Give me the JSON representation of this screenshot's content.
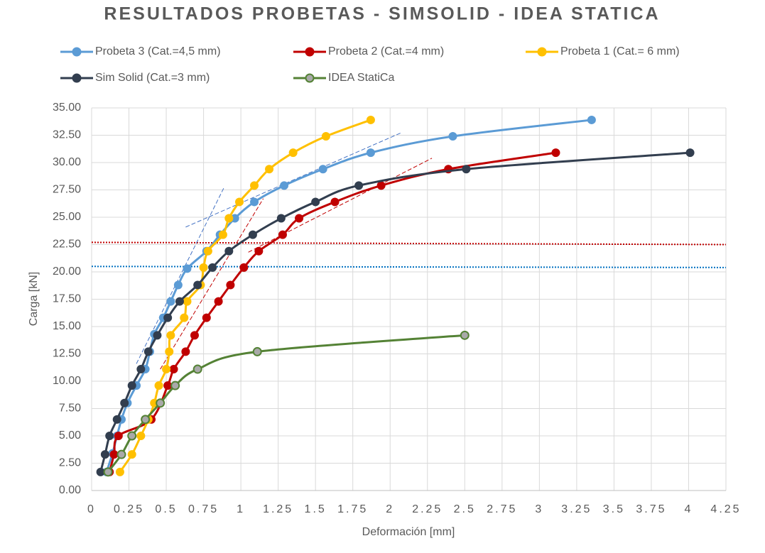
{
  "chart_data": {
    "type": "line",
    "title": "RESULTADOS  PROBETAS  - SIMSOLID  - IDEA STATICA",
    "xlabel": "Deformación [mm]",
    "ylabel": "Carga [kN]",
    "xlim": [
      0,
      4.25
    ],
    "ylim": [
      0,
      35
    ],
    "xticks": [
      0,
      0.25,
      0.5,
      0.75,
      1,
      1.25,
      1.5,
      1.75,
      2,
      2.25,
      2.5,
      2.75,
      3,
      3.25,
      3.5,
      3.75,
      4,
      4.25
    ],
    "yticks": [
      {
        "value": 0,
        "label": "0.00"
      },
      {
        "value": 2.5,
        "label": "2.50"
      },
      {
        "value": 5,
        "label": "5.00"
      },
      {
        "value": 7.5,
        "label": "7.50"
      },
      {
        "value": 10,
        "label": "10.00"
      },
      {
        "value": 12.5,
        "label": "12.50"
      },
      {
        "value": 15,
        "label": "15.00"
      },
      {
        "value": 17.5,
        "label": "17.50"
      },
      {
        "value": 20,
        "label": "20.00"
      },
      {
        "value": 22.5,
        "label": "22.50"
      },
      {
        "value": 25,
        "label": "25.00"
      },
      {
        "value": 27.5,
        "label": "27.50"
      },
      {
        "value": 30,
        "label": "30.00"
      },
      {
        "value": 32.5,
        "label": "32.50"
      },
      {
        "value": 35,
        "label": "35.00"
      }
    ],
    "grid": true,
    "series": [
      {
        "name": "Probeta 3 (Cat.=4,5 mm)",
        "color": "#5b9bd5",
        "x": [
          0.1,
          0.14,
          0.17,
          0.2,
          0.24,
          0.3,
          0.36,
          0.39,
          0.42,
          0.48,
          0.53,
          0.58,
          0.64,
          0.77,
          0.86,
          0.96,
          1.09,
          1.29,
          1.55,
          1.87,
          2.42,
          3.35
        ],
        "values": [
          1.7,
          3.4,
          5.0,
          6.5,
          8.0,
          9.6,
          11.1,
          12.7,
          14.3,
          15.8,
          17.3,
          18.8,
          20.3,
          21.9,
          23.4,
          24.9,
          26.4,
          27.9,
          29.4,
          30.9,
          32.4,
          33.9
        ]
      },
      {
        "name": "Probeta 2 (Cat.=4 mm)",
        "color": "#c00000",
        "x": [
          0.12,
          0.15,
          0.18,
          0.4,
          0.51,
          0.55,
          0.63,
          0.69,
          0.77,
          0.85,
          0.93,
          1.02,
          1.12,
          1.28,
          1.39,
          1.63,
          1.94,
          2.39,
          3.11
        ],
        "values": [
          1.7,
          3.3,
          5.0,
          6.5,
          9.6,
          11.1,
          12.7,
          14.2,
          15.8,
          17.3,
          18.8,
          20.4,
          21.9,
          23.4,
          24.9,
          26.4,
          27.9,
          29.4,
          30.9
        ]
      },
      {
        "name": "Probeta 1 (Cat.= 6 mm)",
        "color": "#ffc000",
        "x": [
          0.19,
          0.27,
          0.33,
          0.38,
          0.42,
          0.45,
          0.5,
          0.52,
          0.53,
          0.62,
          0.64,
          0.73,
          0.75,
          0.78,
          0.88,
          0.92,
          0.99,
          1.09,
          1.19,
          1.35,
          1.57,
          1.87
        ],
        "values": [
          1.7,
          3.3,
          5.0,
          6.5,
          8.0,
          9.6,
          11.1,
          12.7,
          14.2,
          15.8,
          17.3,
          18.8,
          20.4,
          21.9,
          23.4,
          24.9,
          26.4,
          27.9,
          29.4,
          30.9,
          32.4,
          33.9
        ]
      },
      {
        "name": "Sim Solid (Cat.=3 mm)",
        "color": "#323e4f",
        "x": [
          0.06,
          0.09,
          0.12,
          0.17,
          0.22,
          0.27,
          0.33,
          0.38,
          0.44,
          0.51,
          0.59,
          0.71,
          0.81,
          0.92,
          1.08,
          1.27,
          1.5,
          1.79,
          2.51,
          4.01
        ],
        "values": [
          1.7,
          3.3,
          5.0,
          6.5,
          8.0,
          9.6,
          11.1,
          12.7,
          14.2,
          15.8,
          17.3,
          18.8,
          20.4,
          21.9,
          23.4,
          24.9,
          26.4,
          27.9,
          29.4,
          30.9
        ]
      },
      {
        "name": "IDEA StatiCa",
        "color": "#548235",
        "x": [
          0.11,
          0.2,
          0.27,
          0.36,
          0.46,
          0.56,
          0.71,
          1.11,
          2.5
        ],
        "values": [
          1.7,
          3.3,
          5.0,
          6.5,
          8.0,
          9.6,
          11.1,
          12.7,
          14.2
        ]
      }
    ],
    "reference_lines": [
      {
        "color": "#c00000",
        "x": [
          0,
          4.25
        ],
        "values": [
          22.7,
          22.5
        ]
      },
      {
        "color": "#0070c0",
        "x": [
          0,
          4.25
        ],
        "values": [
          20.5,
          20.4
        ]
      }
    ],
    "guide_lines": [
      {
        "color": "#4472c4",
        "x": [
          0.3,
          0.89
        ],
        "values": [
          11.6,
          27.8
        ]
      },
      {
        "color": "#4472c4",
        "x": [
          0.63,
          2.07
        ],
        "values": [
          24.1,
          32.7
        ]
      },
      {
        "color": "#c00000",
        "x": [
          0.46,
          1.15
        ],
        "values": [
          11.1,
          26.7
        ]
      },
      {
        "color": "#c00000",
        "x": [
          1.05,
          2.28
        ],
        "values": [
          21.8,
          30.4
        ]
      }
    ]
  }
}
